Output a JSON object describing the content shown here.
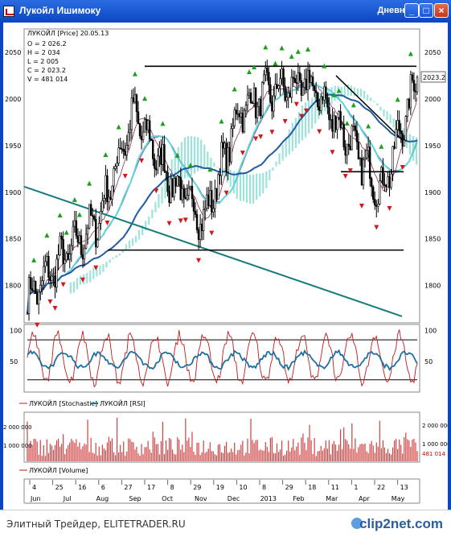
{
  "window": {
    "title": "Лукойл Ишимоку",
    "mode": "Дневной",
    "btn_min": "_",
    "btn_max": "□",
    "btn_close": "×"
  },
  "legend": {
    "name": "ЛУКОЙЛ [Price] 20.05.13",
    "o": "O = 2 026.2",
    "h": "H = 2 034",
    "l": "L = 2 005",
    "c": "C = 2 023.2",
    "v": "V = 481 014"
  },
  "price_axis": {
    "ticks": [
      "2050",
      "2000",
      "1950",
      "1900",
      "1850",
      "1800"
    ],
    "last": "2023.2"
  },
  "osc_axis": {
    "ticks": [
      "100",
      "50"
    ]
  },
  "osc_legend": {
    "stoch": "ЛУКОЙЛ [Stochastic]",
    "rsi": "ЛУКОЙЛ [RSI]"
  },
  "vol_axis": {
    "left": [
      "2 000 000",
      "1 000 000"
    ],
    "right": [
      "2 000 000",
      "1 000 000",
      "481 014"
    ]
  },
  "vol_legend": "ЛУКОЙЛ [Volume]",
  "x_days": [
    "4",
    "25",
    "16",
    "6",
    "27",
    "17",
    "8",
    "29",
    "19",
    "10",
    "8",
    "29",
    "18",
    "11",
    "1",
    "22",
    "13"
  ],
  "x_months": [
    "Jun",
    "Jul",
    "Aug",
    "Sep",
    "Oct",
    "Nov",
    "Dec",
    "2013",
    "Feb",
    "Mar",
    "Apr",
    "May"
  ],
  "footer": {
    "left": "Элитный Трейдер, ELITETRADER.RU",
    "brand": "clip2net.com"
  },
  "colors": {
    "bg": "#ffffff",
    "candle": "#000000",
    "kumo": "#27c1ad",
    "ma_fast": "#5fd5dc",
    "ma_slow": "#1f5aa3",
    "trendline": "#147c7c",
    "up_arrow": "#1aa01a",
    "down_arrow": "#d21818",
    "stoch": "#c01a1a",
    "rsi": "#1f6fa0",
    "volume": "#d04040",
    "titlebar": "#0a46c4"
  },
  "chart_data": {
    "type": "line",
    "title": "ЛУКОЙЛ [Price] 20.05.13",
    "period": "Jun 2012 – May 2013, daily",
    "ylim": [
      1760,
      2075
    ],
    "ohlcv_last": {
      "open": 2026.2,
      "high": 2034,
      "low": 2005,
      "close": 2023.2,
      "volume": 481014
    },
    "series": [
      {
        "name": "ЛУКОЙЛ [Price]",
        "x": [
          "Jun",
          "Jul",
          "Aug",
          "Sep",
          "Oct",
          "Nov",
          "Dec",
          "2013",
          "Feb",
          "Mar",
          "Apr",
          "May"
        ],
        "values": [
          1785,
          1830,
          1870,
          1985,
          1915,
          1870,
          1990,
          2010,
          2015,
          1960,
          1900,
          2023.2
        ]
      }
    ],
    "support_resistance": [
      2035,
      1922,
      1838
    ],
    "oscillators": {
      "ylim": [
        0,
        110
      ],
      "levels": [
        85,
        20
      ],
      "series": [
        "ЛУКОЙЛ [Stochastic]",
        "ЛУКОЙЛ [RSI]"
      ]
    },
    "volume": {
      "last": 481014,
      "ylim": [
        0,
        2200000
      ]
    }
  }
}
